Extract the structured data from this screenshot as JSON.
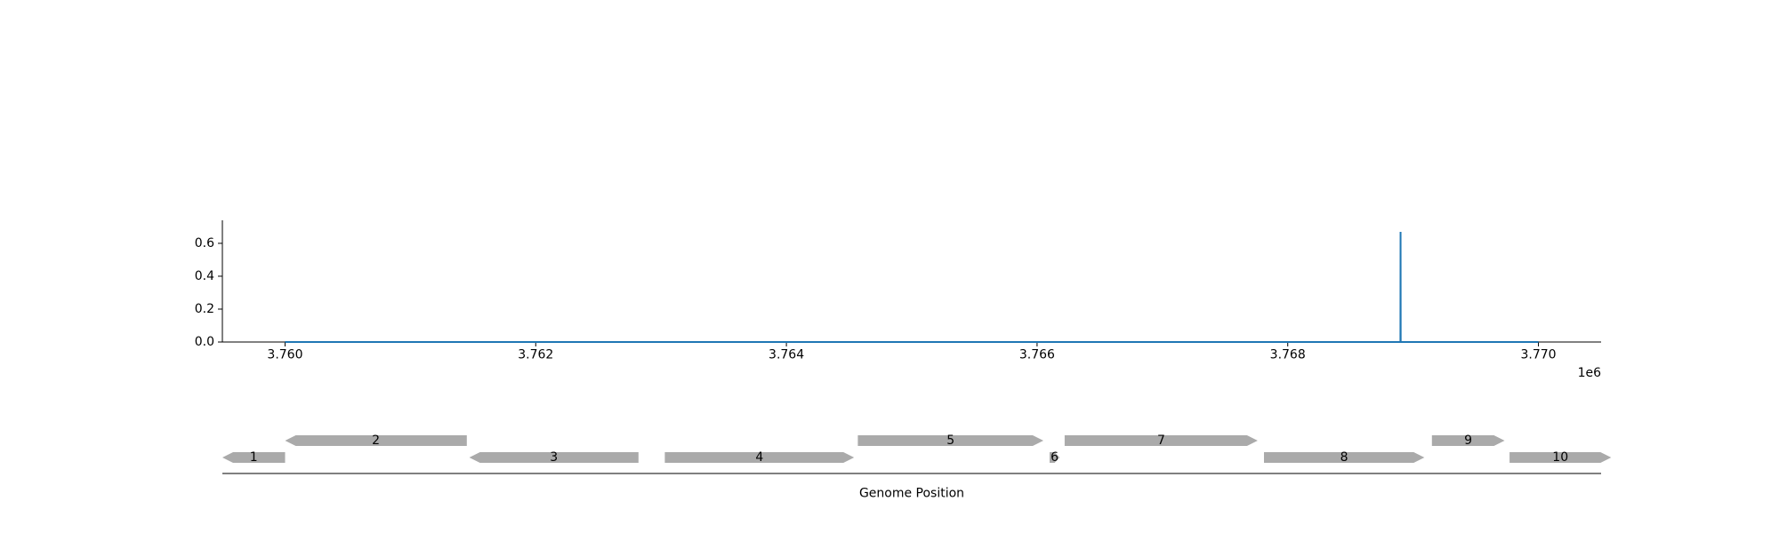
{
  "chart_data": [
    {
      "type": "line",
      "title": "",
      "xlabel": "",
      "ylabel": "",
      "x_offset_label": "1e6",
      "xlim": [
        3759500,
        3770500
      ],
      "ylim": [
        0,
        0.74
      ],
      "x_ticks": [
        3760000,
        3762000,
        3764000,
        3766000,
        3768000,
        3770000
      ],
      "x_tick_labels": [
        "3.760",
        "3.762",
        "3.764",
        "3.766",
        "3.768",
        "3.770"
      ],
      "y_ticks": [
        0,
        0.2,
        0.4,
        0.6
      ],
      "y_tick_labels": [
        "0.0",
        "0.2",
        "0.4",
        "0.6"
      ],
      "grid": false,
      "series_color": "#1f77b4",
      "series": [
        {
          "x": [
            3760000,
            3768899,
            3768900,
            3768901,
            3770000
          ],
          "y": [
            0,
            0,
            0.67,
            0,
            0
          ]
        }
      ]
    },
    {
      "type": "gene-track",
      "xlabel": "Genome Position",
      "xlim": [
        3759500,
        3770500
      ],
      "gene_color": "#aaaaaa",
      "genes": [
        {
          "label": "1",
          "start": 3759500,
          "end": 3760000,
          "strand": "-",
          "row": 0
        },
        {
          "label": "2",
          "start": 3760000,
          "end": 3761450,
          "strand": "-",
          "row": 1
        },
        {
          "label": "3",
          "start": 3761470,
          "end": 3762820,
          "strand": "-",
          "row": 0
        },
        {
          "label": "4",
          "start": 3763030,
          "end": 3764540,
          "strand": "+",
          "row": 0
        },
        {
          "label": "5",
          "start": 3764570,
          "end": 3766050,
          "strand": "+",
          "row": 1
        },
        {
          "label": "6",
          "start": 3766100,
          "end": 3766180,
          "strand": "+",
          "row": 0
        },
        {
          "label": "7",
          "start": 3766220,
          "end": 3767760,
          "strand": "+",
          "row": 1
        },
        {
          "label": "8",
          "start": 3767810,
          "end": 3769090,
          "strand": "+",
          "row": 0
        },
        {
          "label": "9",
          "start": 3769150,
          "end": 3769730,
          "strand": "+",
          "row": 1
        },
        {
          "label": "10",
          "start": 3769770,
          "end": 3770580,
          "strand": "+",
          "row": 0
        }
      ]
    }
  ]
}
